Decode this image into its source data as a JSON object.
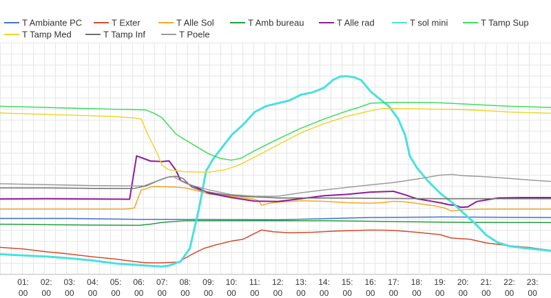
{
  "chart_data": {
    "type": "line",
    "title": "",
    "xlabel": "",
    "ylabel": "",
    "x_unit": "hour",
    "xlim": [
      0,
      23.8
    ],
    "ylim": [
      0,
      100
    ],
    "y_scale_note": "y-axis not labelled; values are relative readings",
    "grid": true,
    "legend_position": "top",
    "xticks": [
      {
        "x": 1,
        "label_top": "01:",
        "label_bottom": "00"
      },
      {
        "x": 2,
        "label_top": "02:",
        "label_bottom": "00"
      },
      {
        "x": 3,
        "label_top": "03:",
        "label_bottom": "00"
      },
      {
        "x": 4,
        "label_top": "04:",
        "label_bottom": "00"
      },
      {
        "x": 5,
        "label_top": "05:",
        "label_bottom": "00"
      },
      {
        "x": 6,
        "label_top": "06:",
        "label_bottom": "00"
      },
      {
        "x": 7,
        "label_top": "07:",
        "label_bottom": "00"
      },
      {
        "x": 8,
        "label_top": "08:",
        "label_bottom": "00"
      },
      {
        "x": 9,
        "label_top": "09:",
        "label_bottom": "00"
      },
      {
        "x": 10,
        "label_top": "10:",
        "label_bottom": "00"
      },
      {
        "x": 11,
        "label_top": "11:",
        "label_bottom": "00"
      },
      {
        "x": 12,
        "label_top": "12:",
        "label_bottom": "00"
      },
      {
        "x": 13,
        "label_top": "13:",
        "label_bottom": "00"
      },
      {
        "x": 14,
        "label_top": "14:",
        "label_bottom": "00"
      },
      {
        "x": 15,
        "label_top": "15:",
        "label_bottom": "00"
      },
      {
        "x": 16,
        "label_top": "16:",
        "label_bottom": "00"
      },
      {
        "x": 17,
        "label_top": "17:",
        "label_bottom": "00"
      },
      {
        "x": 18,
        "label_top": "18:",
        "label_bottom": "00"
      },
      {
        "x": 19,
        "label_top": "19:",
        "label_bottom": "00"
      },
      {
        "x": 20,
        "label_top": "20:",
        "label_bottom": "00"
      },
      {
        "x": 21,
        "label_top": "21:",
        "label_bottom": "00"
      },
      {
        "x": 22,
        "label_top": "22:",
        "label_bottom": "00"
      },
      {
        "x": 23,
        "label_top": "23:",
        "label_bottom": "00"
      }
    ],
    "series": [
      {
        "name": "T Ambiante PC",
        "color": "#4472c4",
        "width": 1.5,
        "points": [
          [
            0,
            24
          ],
          [
            3,
            24
          ],
          [
            6,
            23.6
          ],
          [
            8,
            23.6
          ],
          [
            12,
            23.4
          ],
          [
            16,
            24.4
          ],
          [
            19,
            24.6
          ],
          [
            23.8,
            24.4
          ]
        ]
      },
      {
        "name": "T Exter",
        "color": "#d44a2a",
        "width": 1.5,
        "points": [
          [
            0,
            11.5
          ],
          [
            1,
            10.8
          ],
          [
            2,
            9.6
          ],
          [
            3,
            8.6
          ],
          [
            4,
            7.4
          ],
          [
            5,
            6.4
          ],
          [
            5.5,
            5.7
          ],
          [
            6.3,
            4.8
          ],
          [
            7,
            4.8
          ],
          [
            7.7,
            5.1
          ],
          [
            8.3,
            8.5
          ],
          [
            8.8,
            11
          ],
          [
            9.3,
            12.5
          ],
          [
            10,
            14.2
          ],
          [
            10.5,
            15
          ],
          [
            11,
            17.5
          ],
          [
            11.3,
            19
          ],
          [
            11.8,
            18.2
          ],
          [
            12.5,
            17.8
          ],
          [
            13.5,
            18
          ],
          [
            14.5,
            18.5
          ],
          [
            16,
            19
          ],
          [
            17,
            18.8
          ],
          [
            18,
            18
          ],
          [
            19,
            17
          ],
          [
            19.5,
            15.5
          ],
          [
            20.3,
            15
          ],
          [
            21,
            13.4
          ],
          [
            22,
            12.2
          ],
          [
            22.8,
            11.5
          ],
          [
            23.8,
            10.2
          ]
        ]
      },
      {
        "name": "T Alle Sol",
        "color": "#f5a623",
        "width": 1.5,
        "points": [
          [
            0,
            28
          ],
          [
            3,
            28
          ],
          [
            5.4,
            28
          ],
          [
            5.8,
            28.5
          ],
          [
            6.1,
            36.3
          ],
          [
            6.3,
            36.8
          ],
          [
            6.5,
            37.6
          ],
          [
            6.7,
            37.8
          ],
          [
            7.5,
            37.6
          ],
          [
            8,
            37.2
          ],
          [
            8.5,
            36
          ],
          [
            9,
            34.6
          ],
          [
            10,
            33.5
          ],
          [
            11,
            32.3
          ],
          [
            11.2,
            31.4
          ],
          [
            11.3,
            29.7
          ],
          [
            11.6,
            30.5
          ],
          [
            12,
            31
          ],
          [
            13,
            31.6
          ],
          [
            14,
            31.4
          ],
          [
            15,
            30.8
          ],
          [
            16,
            30.6
          ],
          [
            16.5,
            30.8
          ],
          [
            17,
            31.4
          ],
          [
            17.5,
            31.2
          ],
          [
            18,
            30.5
          ],
          [
            18.8,
            29.4
          ],
          [
            19.2,
            28.5
          ],
          [
            19.5,
            27.2
          ],
          [
            20,
            27.8
          ],
          [
            21,
            28
          ],
          [
            22,
            28
          ],
          [
            23.8,
            28
          ]
        ]
      },
      {
        "name": "T Amb bureau",
        "color": "#1f9e3a",
        "width": 1.5,
        "points": [
          [
            0,
            21.5
          ],
          [
            3,
            21.2
          ],
          [
            6,
            21
          ],
          [
            6.5,
            21.5
          ],
          [
            7,
            22.3
          ],
          [
            8,
            23
          ],
          [
            10,
            23
          ],
          [
            14,
            23
          ],
          [
            18,
            22.5
          ],
          [
            20,
            22.3
          ],
          [
            23.8,
            22.2
          ]
        ]
      },
      {
        "name": "T Alle rad",
        "color": "#8e1a98",
        "width": 2,
        "points": [
          [
            0,
            32.4
          ],
          [
            2,
            32.5
          ],
          [
            4,
            32.4
          ],
          [
            5.6,
            32.3
          ],
          [
            5.9,
            51
          ],
          [
            6.1,
            50.3
          ],
          [
            6.5,
            48.8
          ],
          [
            7,
            48.6
          ],
          [
            7.3,
            48.9
          ],
          [
            7.6,
            44.8
          ],
          [
            7.8,
            40.4
          ],
          [
            8.1,
            39
          ],
          [
            8.7,
            36.5
          ],
          [
            9,
            35
          ],
          [
            10,
            33
          ],
          [
            11,
            31.5
          ],
          [
            12,
            31.3
          ],
          [
            13,
            32.5
          ],
          [
            14,
            33.8
          ],
          [
            15,
            34.4
          ],
          [
            16,
            35.4
          ],
          [
            17,
            35.7
          ],
          [
            17.5,
            34.2
          ],
          [
            18,
            32.5
          ],
          [
            19,
            30.8
          ],
          [
            19.4,
            29.9
          ],
          [
            19.7,
            29.6
          ],
          [
            19.9,
            28.8
          ],
          [
            20.2,
            29
          ],
          [
            20.6,
            31.3
          ],
          [
            21,
            32
          ],
          [
            21.5,
            32.8
          ],
          [
            22.5,
            33
          ],
          [
            23.8,
            33
          ]
        ]
      },
      {
        "name": "T sol mini",
        "color": "#48e0e0",
        "width": 3,
        "points": [
          [
            0,
            8.5
          ],
          [
            1,
            8
          ],
          [
            2,
            7.5
          ],
          [
            3,
            6.8
          ],
          [
            4,
            5.8
          ],
          [
            5,
            4.5
          ],
          [
            6,
            3.8
          ],
          [
            7,
            3.2
          ],
          [
            7.3,
            3.6
          ],
          [
            7.8,
            5.4
          ],
          [
            8.2,
            11
          ],
          [
            8.6,
            28.5
          ],
          [
            8.9,
            44.5
          ],
          [
            9.2,
            49.6
          ],
          [
            9.5,
            53.5
          ],
          [
            10,
            60
          ],
          [
            10.5,
            64.5
          ],
          [
            11,
            70
          ],
          [
            11.5,
            72.6
          ],
          [
            12.5,
            75
          ],
          [
            13,
            77.5
          ],
          [
            13.5,
            78.5
          ],
          [
            14,
            80.5
          ],
          [
            14.4,
            84
          ],
          [
            14.7,
            85.4
          ],
          [
            15,
            85.5
          ],
          [
            15.3,
            85
          ],
          [
            15.6,
            83.8
          ],
          [
            16,
            79
          ],
          [
            16.3,
            76.5
          ],
          [
            16.8,
            72.5
          ],
          [
            17.2,
            67
          ],
          [
            17.5,
            60
          ],
          [
            17.7,
            51
          ],
          [
            18,
            46
          ],
          [
            18.5,
            40
          ],
          [
            19,
            35
          ],
          [
            19.6,
            30.3
          ],
          [
            20,
            26.5
          ],
          [
            20.5,
            22
          ],
          [
            21,
            16.8
          ],
          [
            21.5,
            13.6
          ],
          [
            22,
            12
          ],
          [
            22.8,
            11
          ],
          [
            23.8,
            10
          ]
        ]
      },
      {
        "name": "T Tamp Sup",
        "color": "#3ddc5a",
        "width": 1.5,
        "points": [
          [
            0,
            72.5
          ],
          [
            2,
            72
          ],
          [
            5,
            71.2
          ],
          [
            6.3,
            70.9
          ],
          [
            6.7,
            69.3
          ],
          [
            7,
            67.5
          ],
          [
            7.3,
            64
          ],
          [
            7.6,
            60.5
          ],
          [
            8,
            58
          ],
          [
            8.5,
            55
          ],
          [
            9,
            52
          ],
          [
            9.5,
            50
          ],
          [
            10,
            49.2
          ],
          [
            10.4,
            50
          ],
          [
            11,
            53.3
          ],
          [
            12,
            58.3
          ],
          [
            13,
            63
          ],
          [
            14,
            67
          ],
          [
            15,
            70.5
          ],
          [
            15.5,
            72
          ],
          [
            16,
            73.8
          ],
          [
            17,
            74.2
          ],
          [
            18,
            74.2
          ],
          [
            19,
            74
          ],
          [
            20,
            73.5
          ],
          [
            21,
            73
          ],
          [
            22,
            72.5
          ],
          [
            23.8,
            72
          ]
        ]
      },
      {
        "name": "T Tamp Med",
        "color": "#efd52a",
        "width": 1.5,
        "points": [
          [
            0,
            69.6
          ],
          [
            2,
            69
          ],
          [
            4,
            68.4
          ],
          [
            5,
            68
          ],
          [
            5.8,
            67.5
          ],
          [
            6.1,
            67
          ],
          [
            6.4,
            60
          ],
          [
            6.8,
            52
          ],
          [
            7,
            47
          ],
          [
            7.3,
            45
          ],
          [
            8,
            44.2
          ],
          [
            9,
            44
          ],
          [
            9.7,
            45
          ],
          [
            10.3,
            47
          ],
          [
            11,
            50.5
          ],
          [
            12,
            55.8
          ],
          [
            13,
            61
          ],
          [
            14,
            65
          ],
          [
            15,
            68.2
          ],
          [
            16,
            70.5
          ],
          [
            16.5,
            71.5
          ],
          [
            17,
            71.5
          ],
          [
            18,
            71.4
          ],
          [
            19,
            71.2
          ],
          [
            20,
            71
          ],
          [
            21,
            70.6
          ],
          [
            22,
            70
          ],
          [
            23.8,
            69.5
          ]
        ]
      },
      {
        "name": "T Tamp Inf",
        "color": "#6f6f6f",
        "width": 1.5,
        "points": [
          [
            0,
            37.2
          ],
          [
            2,
            37.2
          ],
          [
            4,
            37
          ],
          [
            5.8,
            37
          ],
          [
            6.3,
            38
          ],
          [
            6.8,
            40.2
          ],
          [
            7.3,
            42
          ],
          [
            7.6,
            42.2
          ],
          [
            7.9,
            41.3
          ],
          [
            8.3,
            37.4
          ],
          [
            8.7,
            36
          ],
          [
            9.3,
            34.9
          ],
          [
            9.8,
            34.2
          ],
          [
            10.5,
            33.5
          ],
          [
            11.5,
            33.1
          ],
          [
            12,
            32.8
          ],
          [
            14,
            32.8
          ],
          [
            17,
            32.6
          ],
          [
            20,
            32.5
          ],
          [
            23.8,
            32.5
          ]
        ]
      },
      {
        "name": "T Poele",
        "color": "#9a9a9a",
        "width": 1.5,
        "points": [
          [
            0,
            39
          ],
          [
            2,
            38.6
          ],
          [
            4,
            38.2
          ],
          [
            5.8,
            38
          ],
          [
            6.2,
            38
          ],
          [
            6.8,
            40.3
          ],
          [
            7.2,
            41.8
          ],
          [
            7.5,
            42
          ],
          [
            8,
            39.3
          ],
          [
            8.4,
            38
          ],
          [
            9,
            36.4
          ],
          [
            10,
            34.3
          ],
          [
            11,
            33.6
          ],
          [
            12,
            33.6
          ],
          [
            13,
            35.1
          ],
          [
            14,
            36.3
          ],
          [
            15,
            37.4
          ],
          [
            16,
            38.5
          ],
          [
            17,
            39.5
          ],
          [
            18,
            41
          ],
          [
            19,
            42.7
          ],
          [
            19.5,
            43
          ],
          [
            20,
            42.5
          ],
          [
            21,
            42
          ],
          [
            22,
            41.3
          ],
          [
            23,
            40.5
          ],
          [
            23.8,
            40
          ]
        ]
      }
    ]
  }
}
